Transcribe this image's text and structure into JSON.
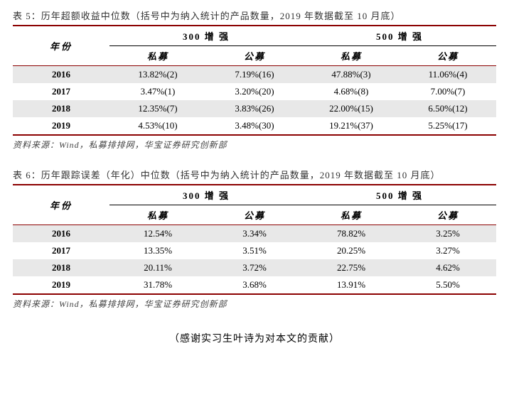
{
  "tables": [
    {
      "caption": "表 5：历年超额收益中位数（括号中为纳入统计的产品数量，2019 年数据截至 10 月底）",
      "year_header": "年份",
      "group_headers": [
        "300 增 强",
        "500 增 强"
      ],
      "sub_headers": [
        "私募",
        "公募",
        "私募",
        "公募"
      ],
      "rows": [
        {
          "year": "2016",
          "cells": [
            "13.82%(2)",
            "7.19%(16)",
            "47.88%(3)",
            "11.06%(4)"
          ],
          "shaded": true
        },
        {
          "year": "2017",
          "cells": [
            "3.47%(1)",
            "3.20%(20)",
            "4.68%(8)",
            "7.00%(7)"
          ],
          "shaded": false
        },
        {
          "year": "2018",
          "cells": [
            "12.35%(7)",
            "3.83%(26)",
            "22.00%(15)",
            "6.50%(12)"
          ],
          "shaded": true
        },
        {
          "year": "2019",
          "cells": [
            "4.53%(10)",
            "3.48%(30)",
            "19.21%(37)",
            "5.25%(17)"
          ],
          "shaded": false
        }
      ],
      "source": "资料来源：Wind，私募排排网，华宝证券研究创新部"
    },
    {
      "caption": "表 6：历年跟踪误差（年化）中位数（括号中为纳入统计的产品数量，2019 年数据截至 10 月底）",
      "year_header": "年份",
      "group_headers": [
        "300 增 强",
        "500 增 强"
      ],
      "sub_headers": [
        "私募",
        "公募",
        "私募",
        "公募"
      ],
      "rows": [
        {
          "year": "2016",
          "cells": [
            "12.54%",
            "3.34%",
            "78.82%",
            "3.25%"
          ],
          "shaded": true
        },
        {
          "year": "2017",
          "cells": [
            "13.35%",
            "3.51%",
            "20.25%",
            "3.27%"
          ],
          "shaded": false
        },
        {
          "year": "2018",
          "cells": [
            "20.11%",
            "3.72%",
            "22.75%",
            "4.62%"
          ],
          "shaded": true
        },
        {
          "year": "2019",
          "cells": [
            "31.78%",
            "3.68%",
            "13.91%",
            "5.50%"
          ],
          "shaded": false
        }
      ],
      "source": "资料来源：Wind，私募排排网，华宝证券研究创新部"
    }
  ],
  "footnote": "（感谢实习生叶诗为对本文的贡献）",
  "colors": {
    "accent": "#8b0000",
    "shaded_row": "#e8e8e8"
  }
}
